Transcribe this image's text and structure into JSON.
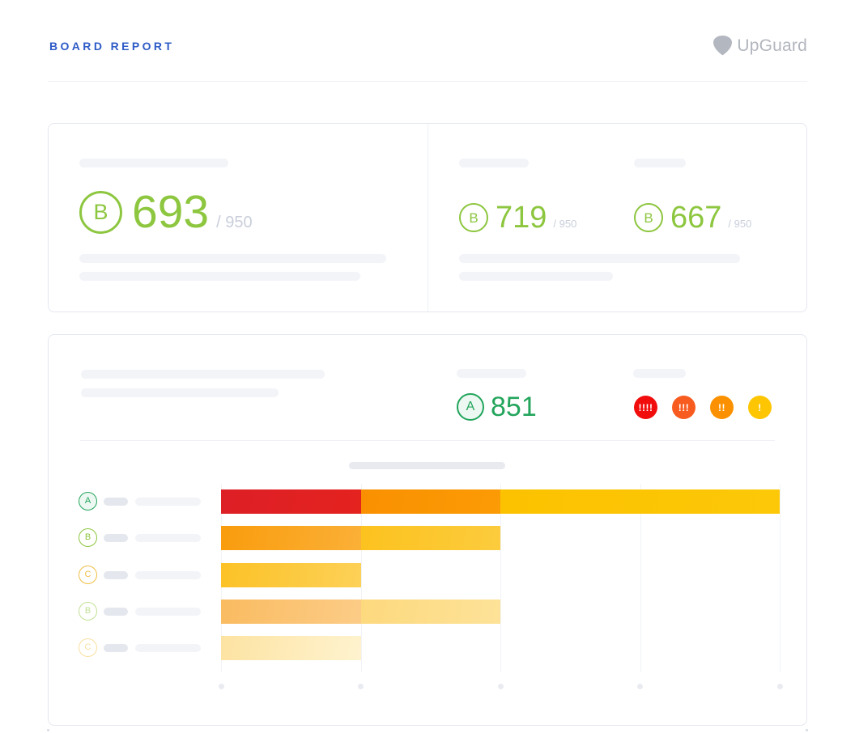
{
  "page": {
    "title": "BOARD REPORT",
    "brand": "UpGuard"
  },
  "colors": {
    "accent_blue": "#2E5BC7",
    "lime_grade": "#8DC63F",
    "green_grade": "#23A55C",
    "muted_text": "#C9CEDB",
    "logo_gray": "#B2B6BE",
    "card_border": "#E5E8F0"
  },
  "summary_card": {
    "overall": {
      "grade": "B",
      "score": "693",
      "out_of": "/ 950"
    },
    "columns": [
      {
        "grade": "B",
        "score": "719",
        "out_of": "/ 950"
      },
      {
        "grade": "B",
        "score": "667",
        "out_of": "/ 950"
      }
    ]
  },
  "detail_card": {
    "average": {
      "grade": "A",
      "score": "851"
    },
    "severity_badges": [
      {
        "label": "!!!!",
        "color": "#F20D0D"
      },
      {
        "label": "!!!",
        "color": "#F85B1F"
      },
      {
        "label": "!!",
        "color": "#FB9100"
      },
      {
        "label": "!",
        "color": "#FDC502"
      }
    ]
  },
  "chart_data": {
    "type": "bar",
    "orientation": "horizontal",
    "title": "",
    "x_axis": {
      "min": 0,
      "max": 4,
      "ticks": [
        0,
        1,
        2,
        3,
        4
      ],
      "tick_labels_visible": false
    },
    "grid": true,
    "legend": "row grade badges A/B/C with redacted labels",
    "rows": [
      {
        "grade": "A",
        "grade_color": "#23A55C",
        "grade_bg": "#EDF8F2",
        "faded": false,
        "segments": [
          {
            "value": 1,
            "color": "#DD1F26",
            "color_end": "#E4231F"
          },
          {
            "value": 1,
            "color": "#FA9000",
            "color_end": "#FB9B05"
          },
          {
            "value": 2,
            "color": "#FCC200",
            "color_end": "#FCC808"
          }
        ]
      },
      {
        "grade": "B",
        "grade_color": "#8DC63F",
        "grade_bg": "#FFFFFF",
        "faded": false,
        "segments": [
          {
            "value": 1,
            "color": "#F99C0D",
            "color_end": "#FBB037"
          },
          {
            "value": 1,
            "color": "#FCC21E",
            "color_end": "#FCCC3E"
          }
        ]
      },
      {
        "grade": "C",
        "grade_color": "#F0BE46",
        "grade_bg": "#FFFFFF",
        "faded": false,
        "segments": [
          {
            "value": 1,
            "color": "#FCC226",
            "color_end": "#FDD158"
          }
        ]
      },
      {
        "grade": "B",
        "grade_color": "#C3E095",
        "grade_bg": "#FFFFFF",
        "faded": true,
        "segments": [
          {
            "value": 1,
            "color": "#FABB60",
            "color_end": "#FCCC87"
          },
          {
            "value": 1,
            "color": "#FDD97E",
            "color_end": "#FDE298"
          }
        ]
      },
      {
        "grade": "C",
        "grade_color": "#F9E0A0",
        "grade_bg": "#FFFFFF",
        "faded": true,
        "segments": [
          {
            "value": 1,
            "color": "#FDE3A2",
            "color_end": "#FEF3CF"
          }
        ]
      }
    ]
  }
}
